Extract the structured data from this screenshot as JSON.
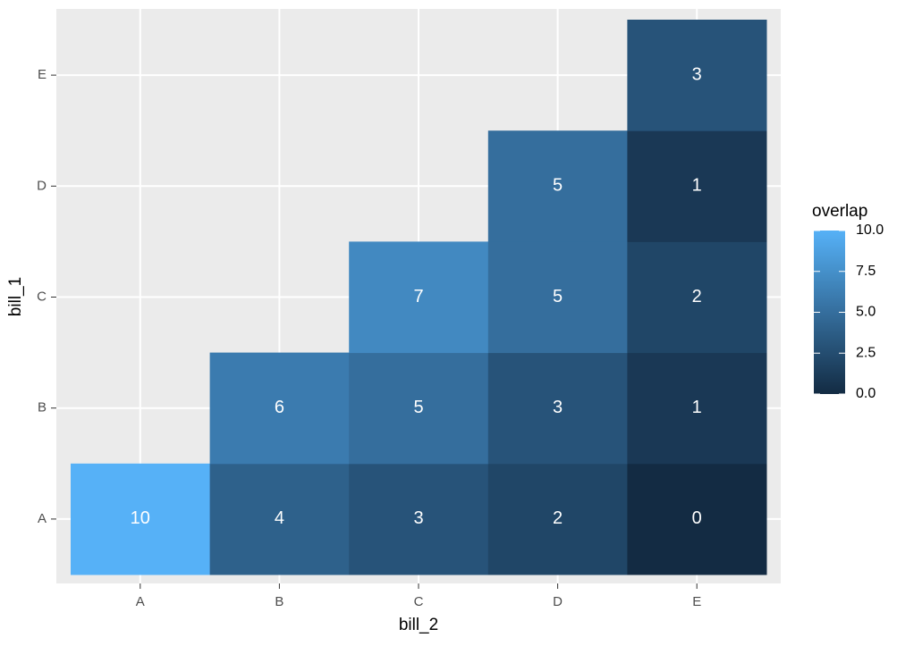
{
  "chart_data": {
    "type": "heatmap",
    "x_label": "bill_2",
    "y_label": "bill_1",
    "x_categories": [
      "A",
      "B",
      "C",
      "D",
      "E"
    ],
    "y_categories": [
      "A",
      "B",
      "C",
      "D",
      "E"
    ],
    "values": [
      [
        10,
        4,
        3,
        2,
        0
      ],
      [
        null,
        6,
        5,
        3,
        1
      ],
      [
        null,
        null,
        7,
        5,
        2
      ],
      [
        null,
        null,
        null,
        5,
        1
      ],
      [
        null,
        null,
        null,
        null,
        3
      ]
    ],
    "legend_title": "overlap",
    "clim": [
      0,
      10
    ],
    "cticks": [
      {
        "value": 0,
        "label": "0.0"
      },
      {
        "value": 2.5,
        "label": "2.5"
      },
      {
        "value": 5,
        "label": "5.0"
      },
      {
        "value": 7.5,
        "label": "7.5"
      },
      {
        "value": 10,
        "label": "10.0"
      }
    ],
    "color_low": "#132B43",
    "color_high": "#56B1F7",
    "grid": true
  }
}
